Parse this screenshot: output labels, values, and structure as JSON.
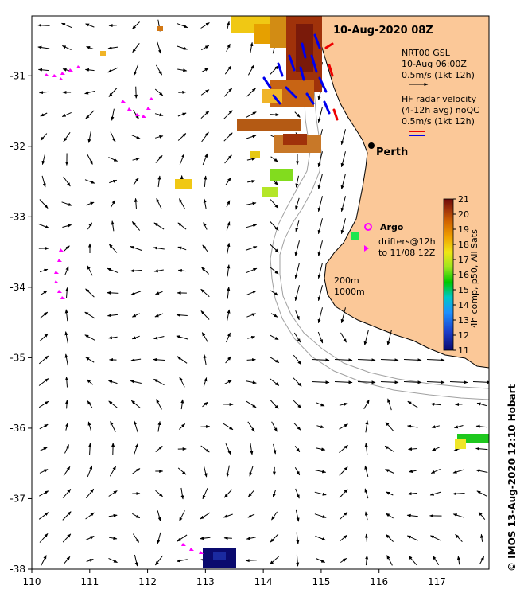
{
  "title": "10-Aug-2020 08Z",
  "axes": {
    "x_ticks": [
      "110",
      "111",
      "112",
      "113",
      "114",
      "115",
      "116",
      "117"
    ],
    "y_ticks": [
      "-31",
      "-32",
      "-33",
      "-34",
      "-35",
      "-36",
      "-37",
      "-38"
    ],
    "xlim": [
      110,
      117.9
    ],
    "ylim": [
      -38,
      -30.15
    ]
  },
  "legend": {
    "gsl_title": "NRT00 GSL",
    "gsl_time": "10-Aug 06:00Z",
    "gsl_scale": "0.5m/s (1kt 12h)",
    "hf_title": "HF radar velocity",
    "hf_detail": "(4-12h avg) noQC",
    "hf_scale": "0.5m/s (1kt 12h)",
    "argo_label": "Argo",
    "drifters_line1": "drifters@12h",
    "drifters_line2": "to 11/08 12Z",
    "isobath_200": "200m",
    "isobath_1000": "1000m"
  },
  "city": {
    "name": "Perth",
    "lon": 115.86,
    "lat": -31.95
  },
  "colorbar": {
    "label": "4h comp, p50, All Sats",
    "ticks": [
      "11",
      "12",
      "13",
      "14",
      "15",
      "16",
      "17",
      "18",
      "19",
      "20",
      "21"
    ],
    "min": 11,
    "max": 21
  },
  "credit": "© IMOS 13-Aug-2020 12:10 Hobart",
  "colors": {
    "land": "#fbc898",
    "gsl_arrow": "#000000",
    "hf_blue": "#0000ee",
    "hf_red": "#ee0000",
    "drifter": "#ff00ff",
    "isobath": "#a0a0a0"
  }
}
